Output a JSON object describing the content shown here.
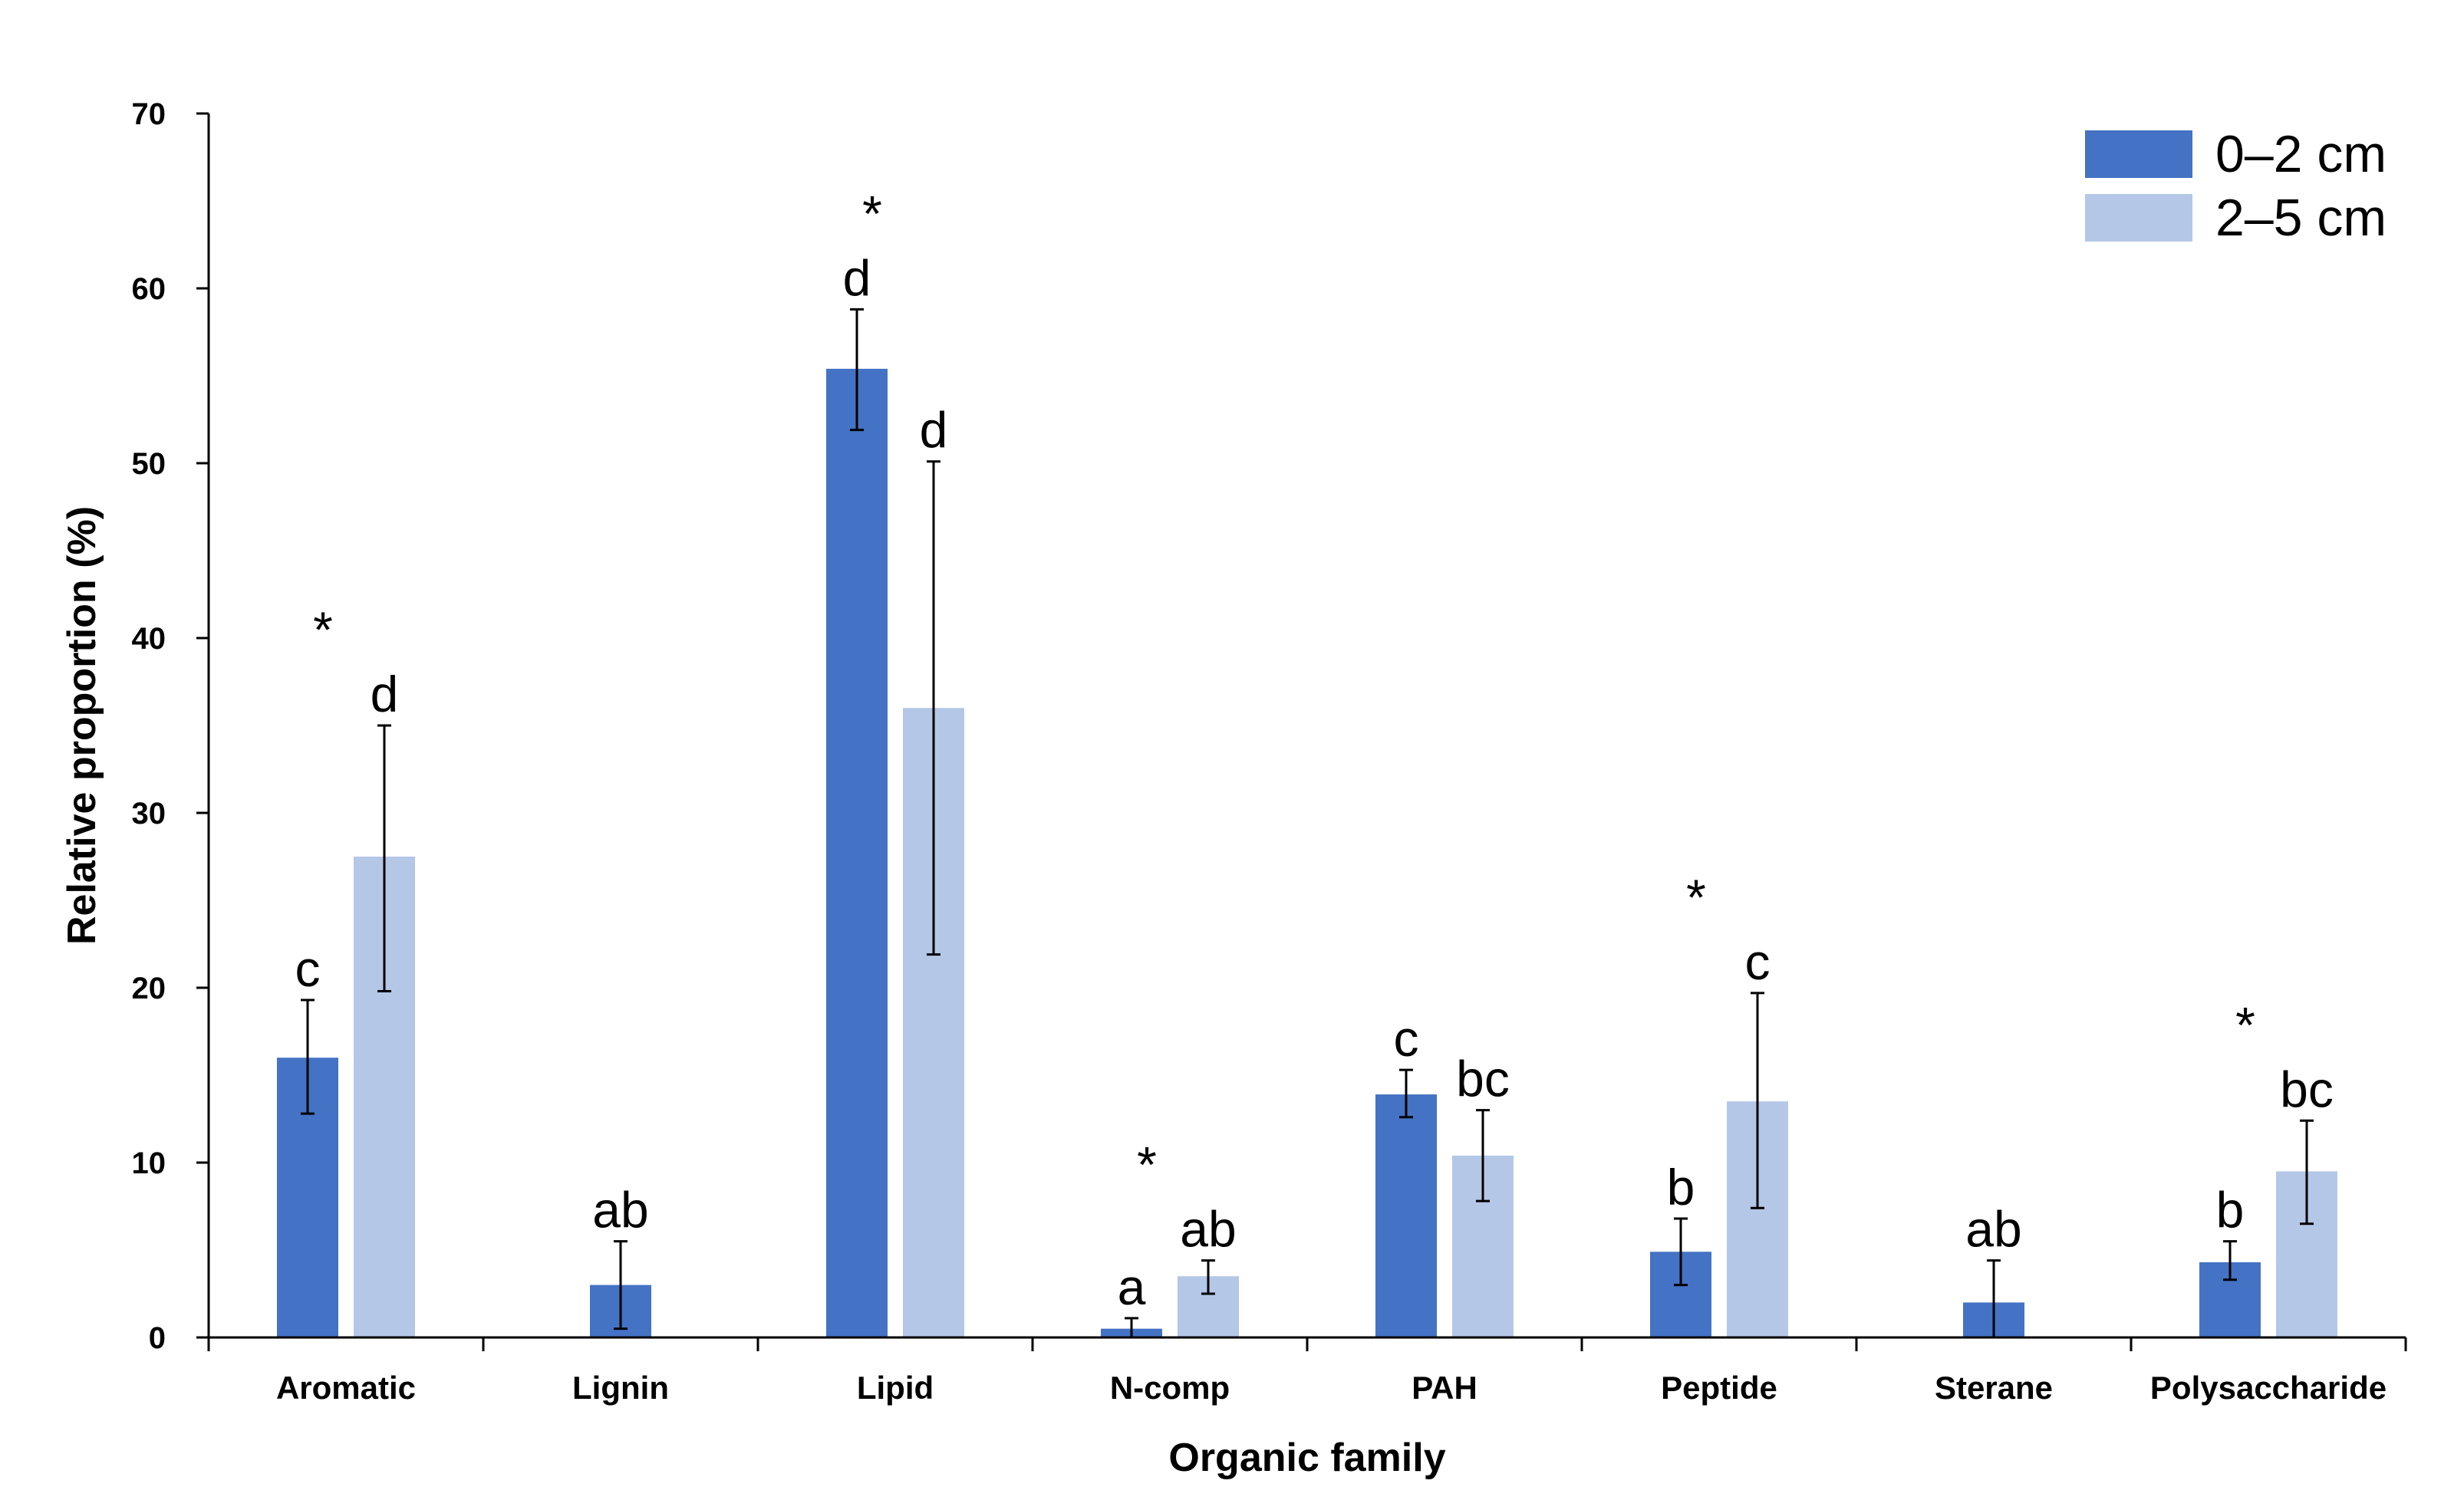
{
  "chart_data": {
    "type": "bar",
    "title": "",
    "xlabel": "Organic family",
    "ylabel": "Relative proportion (%)",
    "ylim": [
      0,
      70
    ],
    "yticks": [
      0,
      10,
      20,
      30,
      40,
      50,
      60,
      70
    ],
    "grid": false,
    "legend_position": "top-right",
    "categories": [
      "Aromatic",
      "Lignin",
      "Lipid",
      "N-comp",
      "PAH",
      "Peptide",
      "Sterane",
      "Polysaccharide"
    ],
    "series": [
      {
        "name": "0–2 cm",
        "color": "#4472C4",
        "values": [
          16.0,
          3.0,
          55.4,
          0.5,
          13.9,
          4.9,
          2.0,
          4.3
        ],
        "err_low": [
          12.8,
          0.5,
          51.9,
          0.0,
          12.6,
          3.0,
          0.0,
          3.3
        ],
        "err_high": [
          19.3,
          5.5,
          58.8,
          1.1,
          15.3,
          6.8,
          4.4,
          5.5
        ],
        "letters": [
          "c",
          "ab",
          "d",
          "a",
          "c",
          "b",
          "ab",
          "b"
        ]
      },
      {
        "name": "2–5 cm",
        "color": "#B4C7E7",
        "values": [
          27.5,
          null,
          36.0,
          3.5,
          10.4,
          13.5,
          null,
          9.5
        ],
        "err_low": [
          19.8,
          null,
          21.9,
          2.5,
          7.8,
          7.4,
          null,
          6.5
        ],
        "err_high": [
          35.0,
          null,
          50.1,
          4.4,
          13.0,
          19.7,
          null,
          12.4
        ],
        "letters": [
          "d",
          "",
          "d",
          "ab",
          "bc",
          "c",
          "",
          "bc"
        ]
      }
    ],
    "significance": [
      "*",
      "",
      "*",
      "*",
      "",
      "*",
      "",
      "*"
    ]
  }
}
